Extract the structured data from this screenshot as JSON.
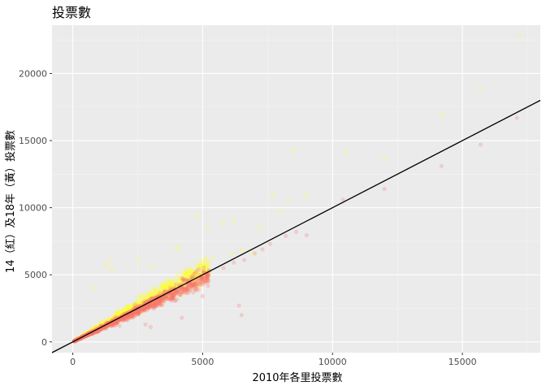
{
  "chart_data": {
    "type": "scatter",
    "title": "投票數",
    "xlabel": "2010年各里投票數",
    "ylabel": "14（紅）及18年（黃）投票數",
    "xlim": [
      -800,
      18000
    ],
    "ylim": [
      -800,
      23600
    ],
    "x_ticks": [
      0,
      5000,
      10000,
      15000
    ],
    "y_ticks": [
      0,
      5000,
      10000,
      15000,
      20000
    ],
    "x_tick_labels": [
      "0",
      "5000",
      "10000",
      "15000"
    ],
    "y_tick_labels": [
      "0",
      "5000",
      "10000",
      "15000",
      "20000"
    ],
    "grid": true,
    "reference_line": {
      "slope": 1.0,
      "intercept": 0,
      "color": "#000000"
    },
    "series": [
      {
        "color": "#f8766d",
        "opacity": 0.25,
        "points": [
          [
            4700,
            4300
          ],
          [
            5200,
            4900
          ],
          [
            5800,
            5500
          ],
          [
            6200,
            5900
          ],
          [
            6600,
            6100
          ],
          [
            7000,
            6600
          ],
          [
            7300,
            6900
          ],
          [
            7600,
            7300
          ],
          [
            8200,
            7900
          ],
          [
            8600,
            8200
          ],
          [
            9000,
            7950
          ],
          [
            10400,
            10600
          ],
          [
            12000,
            11400
          ],
          [
            14200,
            13100
          ],
          [
            15700,
            14700
          ],
          [
            17100,
            16700
          ],
          [
            6500,
            2000
          ],
          [
            6400,
            2700
          ],
          [
            5000,
            3400
          ],
          [
            4200,
            1800
          ],
          [
            2800,
            1300
          ],
          [
            1800,
            1200
          ],
          [
            3000,
            1100
          ]
        ]
      },
      {
        "color": "#ffff33",
        "opacity": 0.25,
        "points": [
          [
            8500,
            14300
          ],
          [
            10500,
            14200
          ],
          [
            12000,
            13600
          ],
          [
            14200,
            17000
          ],
          [
            15700,
            18800
          ],
          [
            17200,
            22800
          ],
          [
            7700,
            10900
          ],
          [
            8300,
            10500
          ],
          [
            9000,
            10900
          ],
          [
            8000,
            9700
          ],
          [
            5800,
            8800
          ],
          [
            6200,
            9100
          ],
          [
            4800,
            9400
          ],
          [
            5200,
            8400
          ],
          [
            7200,
            8500
          ],
          [
            4000,
            6900
          ],
          [
            4100,
            7100
          ],
          [
            6500,
            6800
          ],
          [
            6100,
            6500
          ],
          [
            3000,
            5600
          ],
          [
            2500,
            6100
          ],
          [
            1400,
            6000
          ],
          [
            1500,
            5300
          ],
          [
            1300,
            5700
          ],
          [
            800,
            4000
          ],
          [
            5400,
            6300
          ],
          [
            6900,
            6600
          ]
        ]
      }
    ]
  }
}
